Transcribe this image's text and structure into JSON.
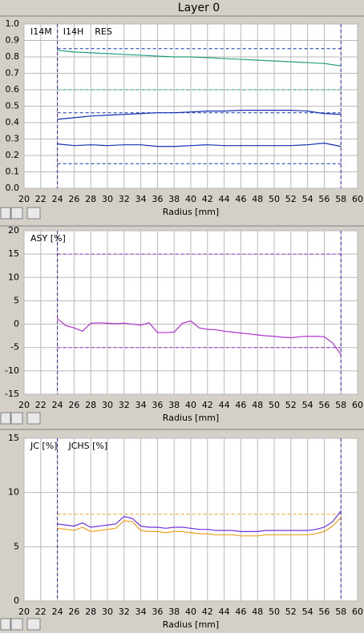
{
  "title": "Layer 0",
  "chart_data": [
    {
      "type": "line",
      "xlabel": "Radius [mm]",
      "xlim": [
        20,
        60
      ],
      "xticks": [
        20,
        22,
        24,
        26,
        28,
        30,
        32,
        34,
        36,
        38,
        40,
        42,
        44,
        46,
        48,
        50,
        52,
        54,
        56,
        58,
        60
      ],
      "ylim": [
        0,
        1
      ],
      "yticks": [
        {
          "value": 0,
          "label": "0.0"
        },
        0.1,
        0.2,
        0.3,
        0.4,
        0.5,
        0.6,
        0.7,
        0.8,
        0.9,
        {
          "value": 1,
          "label": "1.0"
        }
      ],
      "grid": true,
      "x": [
        24,
        26,
        28,
        30,
        32,
        34,
        36,
        38,
        40,
        42,
        44,
        46,
        48,
        50,
        52,
        54,
        56,
        58
      ],
      "series": [
        {
          "name": "I14M",
          "color": "#20a080",
          "values": [
            0.84,
            0.83,
            0.825,
            0.82,
            0.815,
            0.81,
            0.805,
            0.8,
            0.8,
            0.795,
            0.79,
            0.785,
            0.78,
            0.775,
            0.77,
            0.765,
            0.76,
            0.745
          ]
        },
        {
          "name": "I14H",
          "color": "#1030b0",
          "values": [
            0.42,
            0.43,
            0.44,
            0.445,
            0.45,
            0.455,
            0.46,
            0.46,
            0.465,
            0.47,
            0.47,
            0.475,
            0.475,
            0.475,
            0.475,
            0.47,
            0.455,
            0.45
          ]
        },
        {
          "name": "RES",
          "color": "#1030b0",
          "values": [
            0.27,
            0.26,
            0.265,
            0.26,
            0.265,
            0.265,
            0.255,
            0.255,
            0.26,
            0.265,
            0.26,
            0.26,
            0.26,
            0.26,
            0.26,
            0.265,
            0.275,
            0.255
          ]
        }
      ],
      "hlines": [
        {
          "value": 0.85,
          "color": "#1030b0"
        },
        {
          "value": 0.6,
          "color": "#20a080"
        },
        {
          "value": 0.46,
          "color": "#1030b0"
        },
        {
          "value": 0.15,
          "color": "#1030b0"
        }
      ],
      "vlines": [
        {
          "value": 24,
          "color": "#4020c0"
        },
        {
          "value": 58,
          "color": "#4020c0"
        }
      ]
    },
    {
      "type": "line",
      "xlabel": "Radius [mm]",
      "xlim": [
        20,
        60
      ],
      "xticks": [
        20,
        22,
        24,
        26,
        28,
        30,
        32,
        34,
        36,
        38,
        40,
        42,
        44,
        46,
        48,
        50,
        52,
        54,
        56,
        58,
        60
      ],
      "ylim": [
        -15,
        20
      ],
      "yticks": [
        -15,
        -10,
        -5,
        0,
        5,
        10,
        15,
        20
      ],
      "grid": true,
      "x": [
        24,
        25,
        26,
        27,
        28,
        29,
        30,
        31,
        32,
        33,
        34,
        35,
        36,
        37,
        38,
        39,
        40,
        41,
        42,
        43,
        44,
        45,
        46,
        47,
        48,
        49,
        50,
        51,
        52,
        53,
        54,
        55,
        56,
        57,
        58
      ],
      "series": [
        {
          "name": "ASY [%]",
          "color": "#b030d0",
          "values": [
            1.2,
            -0.3,
            -0.8,
            -1.5,
            0.2,
            0.3,
            0.2,
            0.1,
            0.2,
            0,
            -0.2,
            0.3,
            -1.8,
            -1.8,
            -1.7,
            0.2,
            0.7,
            -0.8,
            -1.1,
            -1.2,
            -1.5,
            -1.7,
            -1.9,
            -2.1,
            -2.3,
            -2.5,
            -2.6,
            -2.8,
            -2.9,
            -2.7,
            -2.6,
            -2.6,
            -2.7,
            -4.0,
            -6.5
          ]
        }
      ],
      "hlines": [
        {
          "value": 15,
          "color": "#9030d0"
        },
        {
          "value": -5,
          "color": "#9030d0"
        }
      ],
      "vlines": [
        {
          "value": 24,
          "color": "#4020c0"
        },
        {
          "value": 58,
          "color": "#4020c0"
        }
      ]
    },
    {
      "type": "line",
      "xlabel": "Radius [mm]",
      "xlim": [
        20,
        60
      ],
      "xticks": [
        20,
        22,
        24,
        26,
        28,
        30,
        32,
        34,
        36,
        38,
        40,
        42,
        44,
        46,
        48,
        50,
        52,
        54,
        56,
        58,
        60
      ],
      "ylim": [
        0,
        15
      ],
      "yticks": [
        0,
        5,
        10,
        15
      ],
      "grid": true,
      "x": [
        24,
        25,
        26,
        27,
        28,
        29,
        30,
        31,
        32,
        33,
        34,
        35,
        36,
        37,
        38,
        39,
        40,
        41,
        42,
        43,
        44,
        45,
        46,
        47,
        48,
        49,
        50,
        51,
        52,
        53,
        54,
        55,
        56,
        57,
        58
      ],
      "series": [
        {
          "name": "JC [%]",
          "color": "#f0a020",
          "values": [
            6.7,
            6.6,
            6.5,
            6.8,
            6.4,
            6.5,
            6.6,
            6.7,
            7.4,
            7.3,
            6.5,
            6.4,
            6.4,
            6.3,
            6.4,
            6.4,
            6.3,
            6.2,
            6.2,
            6.1,
            6.1,
            6.1,
            6.0,
            6.0,
            6.0,
            6.1,
            6.1,
            6.1,
            6.1,
            6.1,
            6.1,
            6.2,
            6.4,
            6.9,
            7.7
          ]
        },
        {
          "name": "JCHS [%]",
          "color": "#7030e0",
          "values": [
            7.1,
            7.0,
            6.9,
            7.2,
            6.8,
            6.9,
            7.0,
            7.1,
            7.8,
            7.6,
            6.9,
            6.8,
            6.8,
            6.7,
            6.8,
            6.8,
            6.7,
            6.6,
            6.6,
            6.5,
            6.5,
            6.5,
            6.4,
            6.4,
            6.4,
            6.5,
            6.5,
            6.5,
            6.5,
            6.5,
            6.5,
            6.6,
            6.8,
            7.3,
            8.3
          ]
        }
      ],
      "hlines": [
        {
          "value": 8,
          "color": "#f0a020"
        }
      ],
      "vlines": [
        {
          "value": 24,
          "color": "#4020c0"
        },
        {
          "value": 58,
          "color": "#4020c0"
        }
      ]
    }
  ]
}
